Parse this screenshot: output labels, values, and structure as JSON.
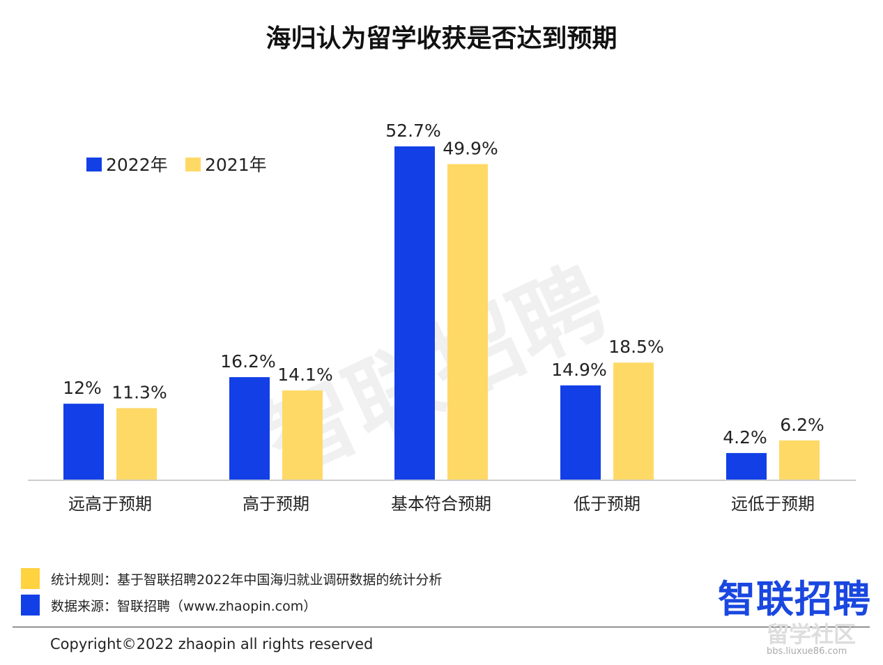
{
  "chart_data": {
    "type": "bar",
    "title": "海归认为留学收获是否达到预期",
    "categories": [
      "远高于预期",
      "高于预期",
      "基本符合预期",
      "低于预期",
      "远低于预期"
    ],
    "series": [
      {
        "name": "2022年",
        "color": "#1240e6",
        "values": [
          12,
          16.2,
          52.7,
          14.9,
          4.2
        ],
        "labels": [
          "12%",
          "16.2%",
          "52.7%",
          "14.9%",
          "4.2%"
        ]
      },
      {
        "name": "2021年",
        "color": "#ffd966",
        "values": [
          11.3,
          14.1,
          49.9,
          18.5,
          6.2
        ],
        "labels": [
          "11.3%",
          "14.1%",
          "49.9%",
          "18.5%",
          "6.2%"
        ]
      }
    ],
    "xlabel": "",
    "ylabel": "",
    "ylim": [
      0,
      60
    ],
    "grid": false,
    "legend": "top-left"
  },
  "watermark": "智联招聘",
  "notes": [
    {
      "color": "#ffd23f",
      "text": "统计规则：基于智联招聘2022年中国海归就业调研数据的统计分析"
    },
    {
      "color": "#1240e6",
      "text": "数据来源：智联招聘（www.zhaopin.com）"
    }
  ],
  "logo": "智联招聘",
  "copyright": "Copyright©2022 zhaopin all rights reserved",
  "stamp": {
    "main": "留学社区",
    "sub": "bbs.liuxue86.com"
  }
}
